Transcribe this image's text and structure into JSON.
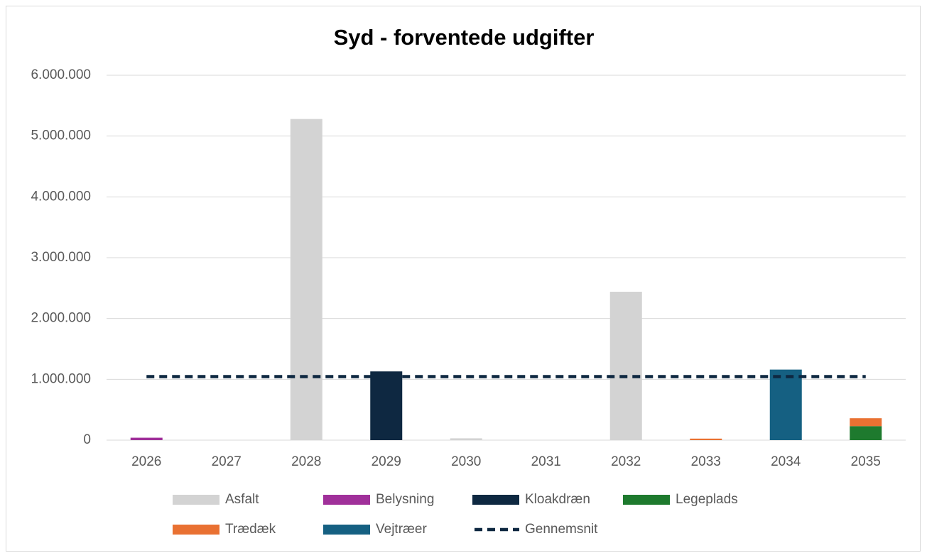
{
  "chart_data": {
    "type": "bar",
    "stacked": true,
    "title": "Syd - forventede udgifter",
    "categories": [
      "2026",
      "2027",
      "2028",
      "2029",
      "2030",
      "2031",
      "2032",
      "2033",
      "2034",
      "2035"
    ],
    "series": [
      {
        "name": "Asfalt",
        "color": "#d3d3d3",
        "values": [
          0,
          0,
          5280000,
          0,
          30000,
          0,
          2440000,
          0,
          0,
          0
        ]
      },
      {
        "name": "Belysning",
        "color": "#a0309a",
        "values": [
          40000,
          0,
          0,
          0,
          0,
          0,
          0,
          0,
          0,
          0
        ]
      },
      {
        "name": "Kloakdræn",
        "color": "#0e2841",
        "values": [
          0,
          0,
          0,
          1130000,
          0,
          0,
          0,
          0,
          0,
          0
        ]
      },
      {
        "name": "Legeplads",
        "color": "#1e7a2e",
        "values": [
          0,
          0,
          0,
          0,
          0,
          0,
          0,
          0,
          0,
          230000
        ]
      },
      {
        "name": "Trædæk",
        "color": "#e97132",
        "values": [
          0,
          0,
          0,
          0,
          0,
          0,
          0,
          25000,
          0,
          130000
        ]
      },
      {
        "name": "Vejtræer",
        "color": "#156082",
        "values": [
          0,
          0,
          0,
          0,
          0,
          0,
          0,
          0,
          1160000,
          0
        ]
      },
      {
        "name": "Gennemsnit",
        "color": "#0e2841",
        "type": "line",
        "dashed": true,
        "values": [
          1045000,
          1045000,
          1045000,
          1045000,
          1045000,
          1045000,
          1045000,
          1045000,
          1045000,
          1045000
        ]
      }
    ],
    "ylim": [
      0,
      6000000
    ],
    "yticks": [
      0,
      {
        "value": 1000000,
        "label": "1.000.000"
      },
      {
        "value": 2000000,
        "label": "2.000.000"
      },
      {
        "value": 3000000,
        "label": "3.000.000"
      },
      {
        "value": 4000000,
        "label": "4.000.000"
      },
      {
        "value": 5000000,
        "label": "5.000.000"
      },
      {
        "value": 6000000,
        "label": "6.000.000"
      }
    ],
    "grid": true,
    "legend": "bottom"
  }
}
